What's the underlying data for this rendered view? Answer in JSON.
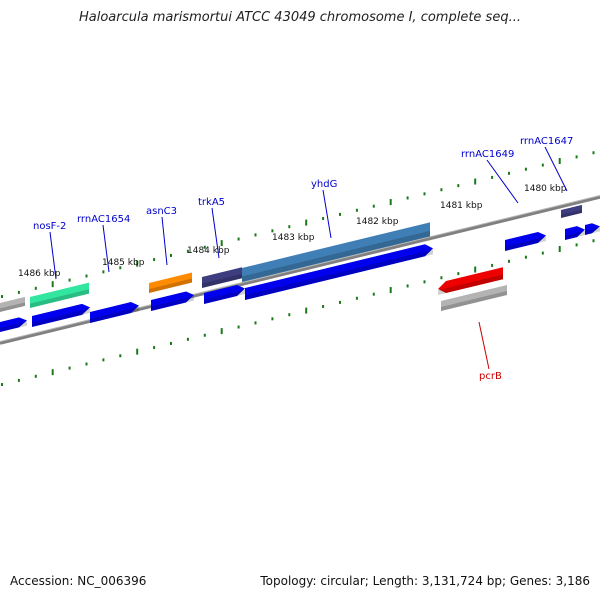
{
  "title": "Haloarcula marismortui ATCC 43049 chromosome I, complete seq...",
  "accession": "Accession: NC_006396",
  "summary": "Topology: circular; Length: 3,131,724 bp; Genes: 3,186",
  "colors": {
    "backbone": "#808080",
    "ticks": "#1a7a1a",
    "forward_cds": "#0000ee",
    "reverse_cds": "#ee0000",
    "rrna": "#b3b3b3",
    "trna_green": "#33e6a0",
    "orange": "#ff8c00",
    "dark_purple": "#3d3d80",
    "steel_blue": "#3f7fb5",
    "label_forward": "#0000cc",
    "label_reverse": "#cc0000"
  },
  "kbp_labels": [
    "1486 kbp",
    "1485 kbp",
    "1484 kbp",
    "1483 kbp",
    "1482 kbp",
    "1481 kbp",
    "1480 kbp"
  ],
  "gene_labels": [
    {
      "text": "nosF-2",
      "strand": "forward"
    },
    {
      "text": "rrnAC1654",
      "strand": "forward"
    },
    {
      "text": "asnC3",
      "strand": "forward"
    },
    {
      "text": "trkA5",
      "strand": "forward"
    },
    {
      "text": "yhdG",
      "strand": "forward"
    },
    {
      "text": "rrnAC1649",
      "strand": "forward"
    },
    {
      "text": "rrnAC1647",
      "strand": "forward"
    },
    {
      "text": "pcrB",
      "strand": "reverse"
    }
  ]
}
